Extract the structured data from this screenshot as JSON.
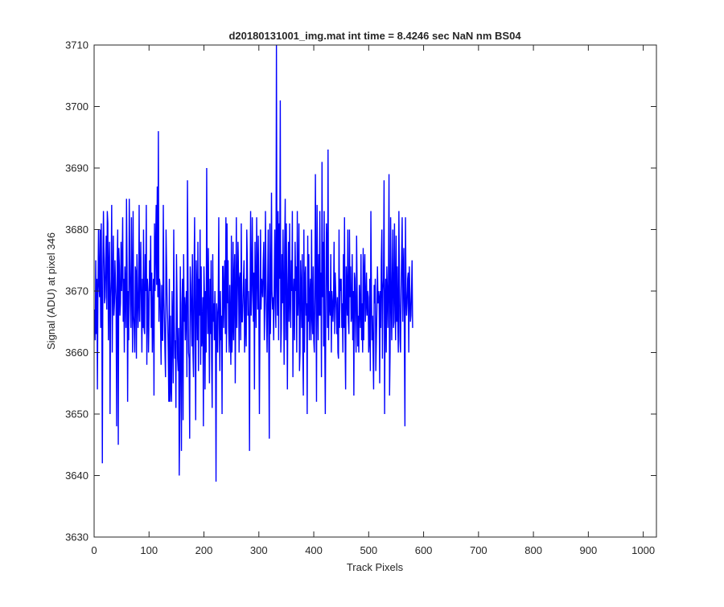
{
  "chart_data": {
    "type": "line",
    "title": "d20180131001_img.mat int time = 8.4246 sec  NaN nm BS04",
    "xlabel": "Track Pixels",
    "ylabel": "Signal (ADU) at pixel 346",
    "xlim": [
      0,
      1024
    ],
    "ylim": [
      3630,
      3710
    ],
    "xticks": [
      0,
      100,
      200,
      300,
      400,
      500,
      600,
      700,
      800,
      900,
      1000
    ],
    "yticks": [
      3630,
      3640,
      3650,
      3660,
      3670,
      3680,
      3690,
      3700,
      3710
    ],
    "grid": false,
    "legend": "none",
    "series_color": "#0000ff",
    "x_start": 1,
    "x_step": 1,
    "values": [
      3667,
      3662,
      3675,
      3663,
      3672,
      3654,
      3670,
      3680,
      3671,
      3669,
      3680,
      3664,
      3681,
      3668,
      3642,
      3674,
      3683,
      3676,
      3668,
      3669,
      3675,
      3679,
      3667,
      3683,
      3681,
      3662,
      3674,
      3678,
      3650,
      3669,
      3672,
      3684,
      3660,
      3671,
      3679,
      3666,
      3668,
      3675,
      3671,
      3668,
      3648,
      3675,
      3680,
      3645,
      3677,
      3674,
      3666,
      3668,
      3678,
      3670,
      3674,
      3682,
      3665,
      3672,
      3660,
      3674,
      3670,
      3664,
      3685,
      3674,
      3652,
      3670,
      3662,
      3685,
      3675,
      3668,
      3664,
      3682,
      3671,
      3660,
      3683,
      3666,
      3664,
      3660,
      3674,
      3673,
      3659,
      3676,
      3670,
      3664,
      3668,
      3684,
      3665,
      3672,
      3678,
      3668,
      3660,
      3672,
      3664,
      3680,
      3664,
      3663,
      3676,
      3670,
      3684,
      3658,
      3672,
      3670,
      3660,
      3666,
      3675,
      3670,
      3679,
      3664,
      3673,
      3660,
      3667,
      3672,
      3653,
      3681,
      3670,
      3677,
      3684,
      3671,
      3687,
      3669,
      3696,
      3665,
      3672,
      3671,
      3664,
      3658,
      3671,
      3662,
      3662,
      3684,
      3669,
      3665,
      3660,
      3656,
      3680,
      3674,
      3668,
      3665,
      3660,
      3652,
      3672,
      3652,
      3666,
      3654,
      3652,
      3670,
      3664,
      3655,
      3680,
      3665,
      3659,
      3662,
      3651,
      3676,
      3669,
      3659,
      3657,
      3664,
      3640,
      3651,
      3674,
      3660,
      3644,
      3668,
      3672,
      3649,
      3676,
      3665,
      3669,
      3662,
      3667,
      3670,
      3656,
      3688,
      3672,
      3660,
      3659,
      3646,
      3674,
      3671,
      3666,
      3661,
      3676,
      3660,
      3656,
      3673,
      3682,
      3662,
      3649,
      3675,
      3670,
      3662,
      3678,
      3657,
      3672,
      3666,
      3680,
      3658,
      3674,
      3661,
      3663,
      3669,
      3648,
      3674,
      3669,
      3654,
      3670,
      3660,
      3690,
      3669,
      3663,
      3677,
      3666,
      3655,
      3672,
      3663,
      3675,
      3659,
      3651,
      3676,
      3665,
      3668,
      3662,
      3670,
      3663,
      3639,
      3668,
      3666,
      3660,
      3668,
      3682,
      3664,
      3657,
      3670,
      3662,
      3666,
      3650,
      3674,
      3674,
      3664,
      3670,
      3675,
      3663,
      3682,
      3660,
      3681,
      3668,
      3675,
      3664,
      3660,
      3671,
      3664,
      3658,
      3679,
      3660,
      3664,
      3678,
      3662,
      3672,
      3676,
      3655,
      3668,
      3682,
      3664,
      3670,
      3678,
      3673,
      3660,
      3672,
      3673,
      3662,
      3681,
      3665,
      3665,
      3668,
      3672,
      3675,
      3660,
      3664,
      3672,
      3661,
      3680,
      3675,
      3666,
      3670,
      3664,
      3644,
      3670,
      3683,
      3666,
      3670,
      3682,
      3672,
      3665,
      3673,
      3654,
      3678,
      3670,
      3664,
      3682,
      3673,
      3667,
      3679,
      3666,
      3650,
      3665,
      3680,
      3667,
      3672,
      3671,
      3669,
      3675,
      3678,
      3662,
      3668,
      3683,
      3672,
      3666,
      3660,
      3670,
      3680,
      3663,
      3646,
      3681,
      3663,
      3669,
      3686,
      3670,
      3667,
      3669,
      3662,
      3672,
      3680,
      3668,
      3664,
      3710,
      3672,
      3666,
      3683,
      3662,
      3681,
      3672,
      3701,
      3660,
      3664,
      3676,
      3668,
      3680,
      3670,
      3658,
      3677,
      3685,
      3662,
      3681,
      3669,
      3654,
      3671,
      3678,
      3665,
      3681,
      3669,
      3664,
      3675,
      3670,
      3683,
      3656,
      3669,
      3672,
      3662,
      3678,
      3670,
      3674,
      3660,
      3683,
      3666,
      3670,
      3681,
      3657,
      3660,
      3675,
      3670,
      3664,
      3676,
      3660,
      3653,
      3680,
      3660,
      3672,
      3674,
      3666,
      3668,
      3650,
      3679,
      3665,
      3676,
      3662,
      3669,
      3672,
      3662,
      3680,
      3666,
      3663,
      3674,
      3662,
      3660,
      3669,
      3689,
      3672,
      3652,
      3684,
      3670,
      3662,
      3676,
      3666,
      3683,
      3666,
      3673,
      3656,
      3691,
      3669,
      3678,
      3661,
      3683,
      3662,
      3650,
      3668,
      3681,
      3677,
      3664,
      3693,
      3662,
      3670,
      3668,
      3666,
      3676,
      3660,
      3670,
      3668,
      3665,
      3669,
      3678,
      3663,
      3673,
      3670,
      3667,
      3663,
      3669,
      3660,
      3659,
      3680,
      3664,
      3672,
      3670,
      3672,
      3664,
      3668,
      3660,
      3676,
      3664,
      3682,
      3662,
      3654,
      3674,
      3670,
      3666,
      3680,
      3665,
      3663,
      3680,
      3669,
      3674,
      3665,
      3666,
      3676,
      3662,
      3670,
      3653,
      3673,
      3672,
      3665,
      3660,
      3679,
      3670,
      3661,
      3666,
      3660,
      3671,
      3667,
      3664,
      3676,
      3662,
      3668,
      3660,
      3677,
      3662,
      3673,
      3676,
      3665,
      3668,
      3673,
      3666,
      3670,
      3669,
      3660,
      3662,
      3672,
      3657,
      3683,
      3670,
      3662,
      3666,
      3660,
      3654,
      3671,
      3668,
      3672,
      3657,
      3662,
      3667,
      3674,
      3668,
      3670,
      3669,
      3655,
      3670,
      3664,
      3675,
      3680,
      3659,
      3670,
      3672,
      3688,
      3650,
      3668,
      3672,
      3660,
      3674,
      3670,
      3664,
      3672,
      3689,
      3653,
      3660,
      3682,
      3669,
      3662,
      3673,
      3680,
      3664,
      3665,
      3681,
      3670,
      3662,
      3679,
      3665,
      3674,
      3665,
      3660,
      3683,
      3671,
      3662,
      3660,
      3670,
      3676,
      3682,
      3665,
      3673,
      3677,
      3662,
      3648,
      3682,
      3670,
      3666,
      3668,
      3672,
      3673,
      3660,
      3674,
      3670,
      3665,
      3666,
      3670,
      3675,
      3664
    ]
  }
}
